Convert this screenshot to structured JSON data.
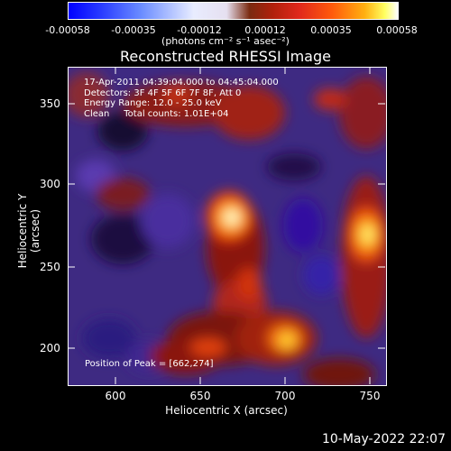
{
  "colorbar": {
    "ticks": [
      "-0.00058",
      "-0.00035",
      "-0.00012",
      "0.00012",
      "0.00035",
      "0.00058"
    ],
    "unit": "(photons cm⁻² s⁻¹ asec⁻²)"
  },
  "title": "Reconstructed RHESSI Image",
  "info": {
    "time_range": "17-Apr-2011 04:39:04.000 to 04:45:04.000",
    "detectors": "Detectors: 3F 4F 5F 6F 7F 8F, Att 0",
    "energy": "Energy Range: 12.0 - 25.0 keV",
    "algorithm": "Clean     Total counts: 1.01E+04"
  },
  "peak_label": "Position of Peak = [662,274]",
  "axes": {
    "xlabel": "Heliocentric X (arcsec)",
    "ylabel": "Heliocentric Y (arcsec)",
    "xticks": [
      "600",
      "650",
      "700",
      "750"
    ],
    "yticks": [
      "350",
      "300",
      "250",
      "200"
    ]
  },
  "timestamp": "10-May-2022 22:07"
}
